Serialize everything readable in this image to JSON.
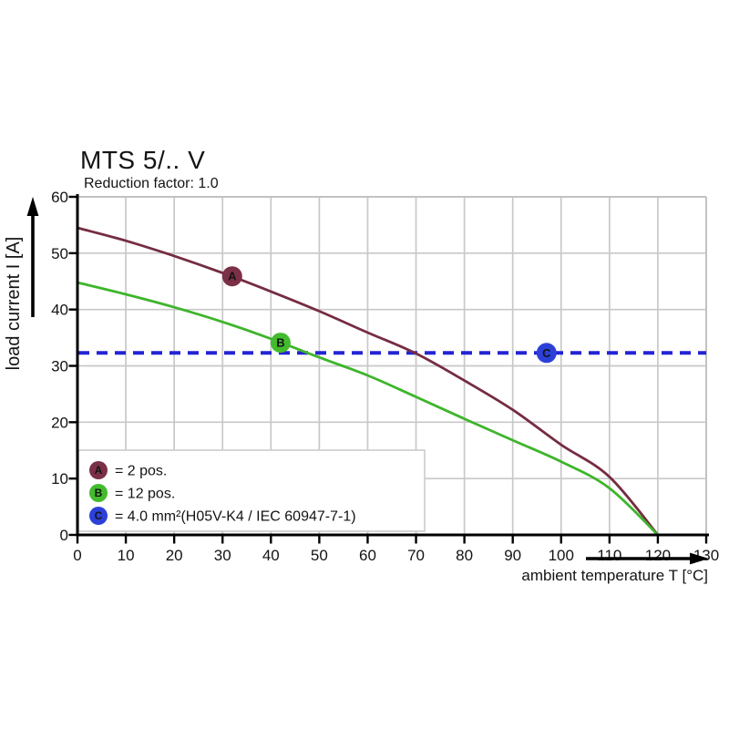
{
  "figure": {
    "background": "#ffffff",
    "text_color": "#141414",
    "grid_color": "#c8c8c8",
    "axis_color": "#000000"
  },
  "chart_data": {
    "type": "line",
    "title": "MTS 5/.. V",
    "subtitle": "Reduction factor: 1.0",
    "xlabel": "ambient temperature T [°C]",
    "ylabel": "load current I [A]",
    "xlim": [
      0,
      130
    ],
    "ylim": [
      0,
      60
    ],
    "x_ticks": [
      0,
      10,
      20,
      30,
      40,
      50,
      60,
      70,
      80,
      90,
      100,
      110,
      120,
      130
    ],
    "y_ticks": [
      0,
      10,
      20,
      30,
      40,
      50,
      60
    ],
    "grid": true,
    "legend_position": "lower left",
    "series": [
      {
        "name": "A",
        "label": "= 2 pos.",
        "color": "#752c41",
        "x": [
          0,
          10,
          20,
          30,
          40,
          50,
          60,
          70,
          80,
          90,
          100,
          110,
          120
        ],
        "y": [
          54.5,
          52.2,
          49.5,
          46.5,
          43.2,
          39.7,
          35.9,
          32.2,
          27.4,
          22.2,
          16.0,
          10.3,
          0
        ]
      },
      {
        "name": "B",
        "label": "= 12 pos.",
        "color": "#3eb52b",
        "x": [
          0,
          10,
          20,
          30,
          40,
          50,
          60,
          70,
          80,
          90,
          100,
          110,
          120
        ],
        "y": [
          44.8,
          42.7,
          40.4,
          37.8,
          34.8,
          31.5,
          28.3,
          24.5,
          20.6,
          16.8,
          13.0,
          8.3,
          0
        ]
      }
    ],
    "reference_line": {
      "name": "C",
      "label": "= 4.0 mm²(H05V-K4 / IEC 60947-7-1)",
      "color": "#2323d4",
      "style": "dashed",
      "y": 32.3
    },
    "markers": [
      {
        "letter": "A",
        "x": 32,
        "y": 45.9,
        "color": "#7b3047"
      },
      {
        "letter": "B",
        "x": 42,
        "y": 34.1,
        "color": "#42bb2d"
      },
      {
        "letter": "C",
        "x": 97,
        "y": 32.3,
        "color": "#2c40d9"
      }
    ],
    "legend": [
      {
        "letter": "A",
        "label": "= 2 pos.",
        "color": "#7b3047"
      },
      {
        "letter": "B",
        "label": "= 12 pos.",
        "color": "#42bb2d"
      },
      {
        "letter": "C",
        "label": "= 4.0 mm²(H05V-K4 / IEC 60947-7-1)",
        "color": "#2c40d9"
      }
    ]
  }
}
